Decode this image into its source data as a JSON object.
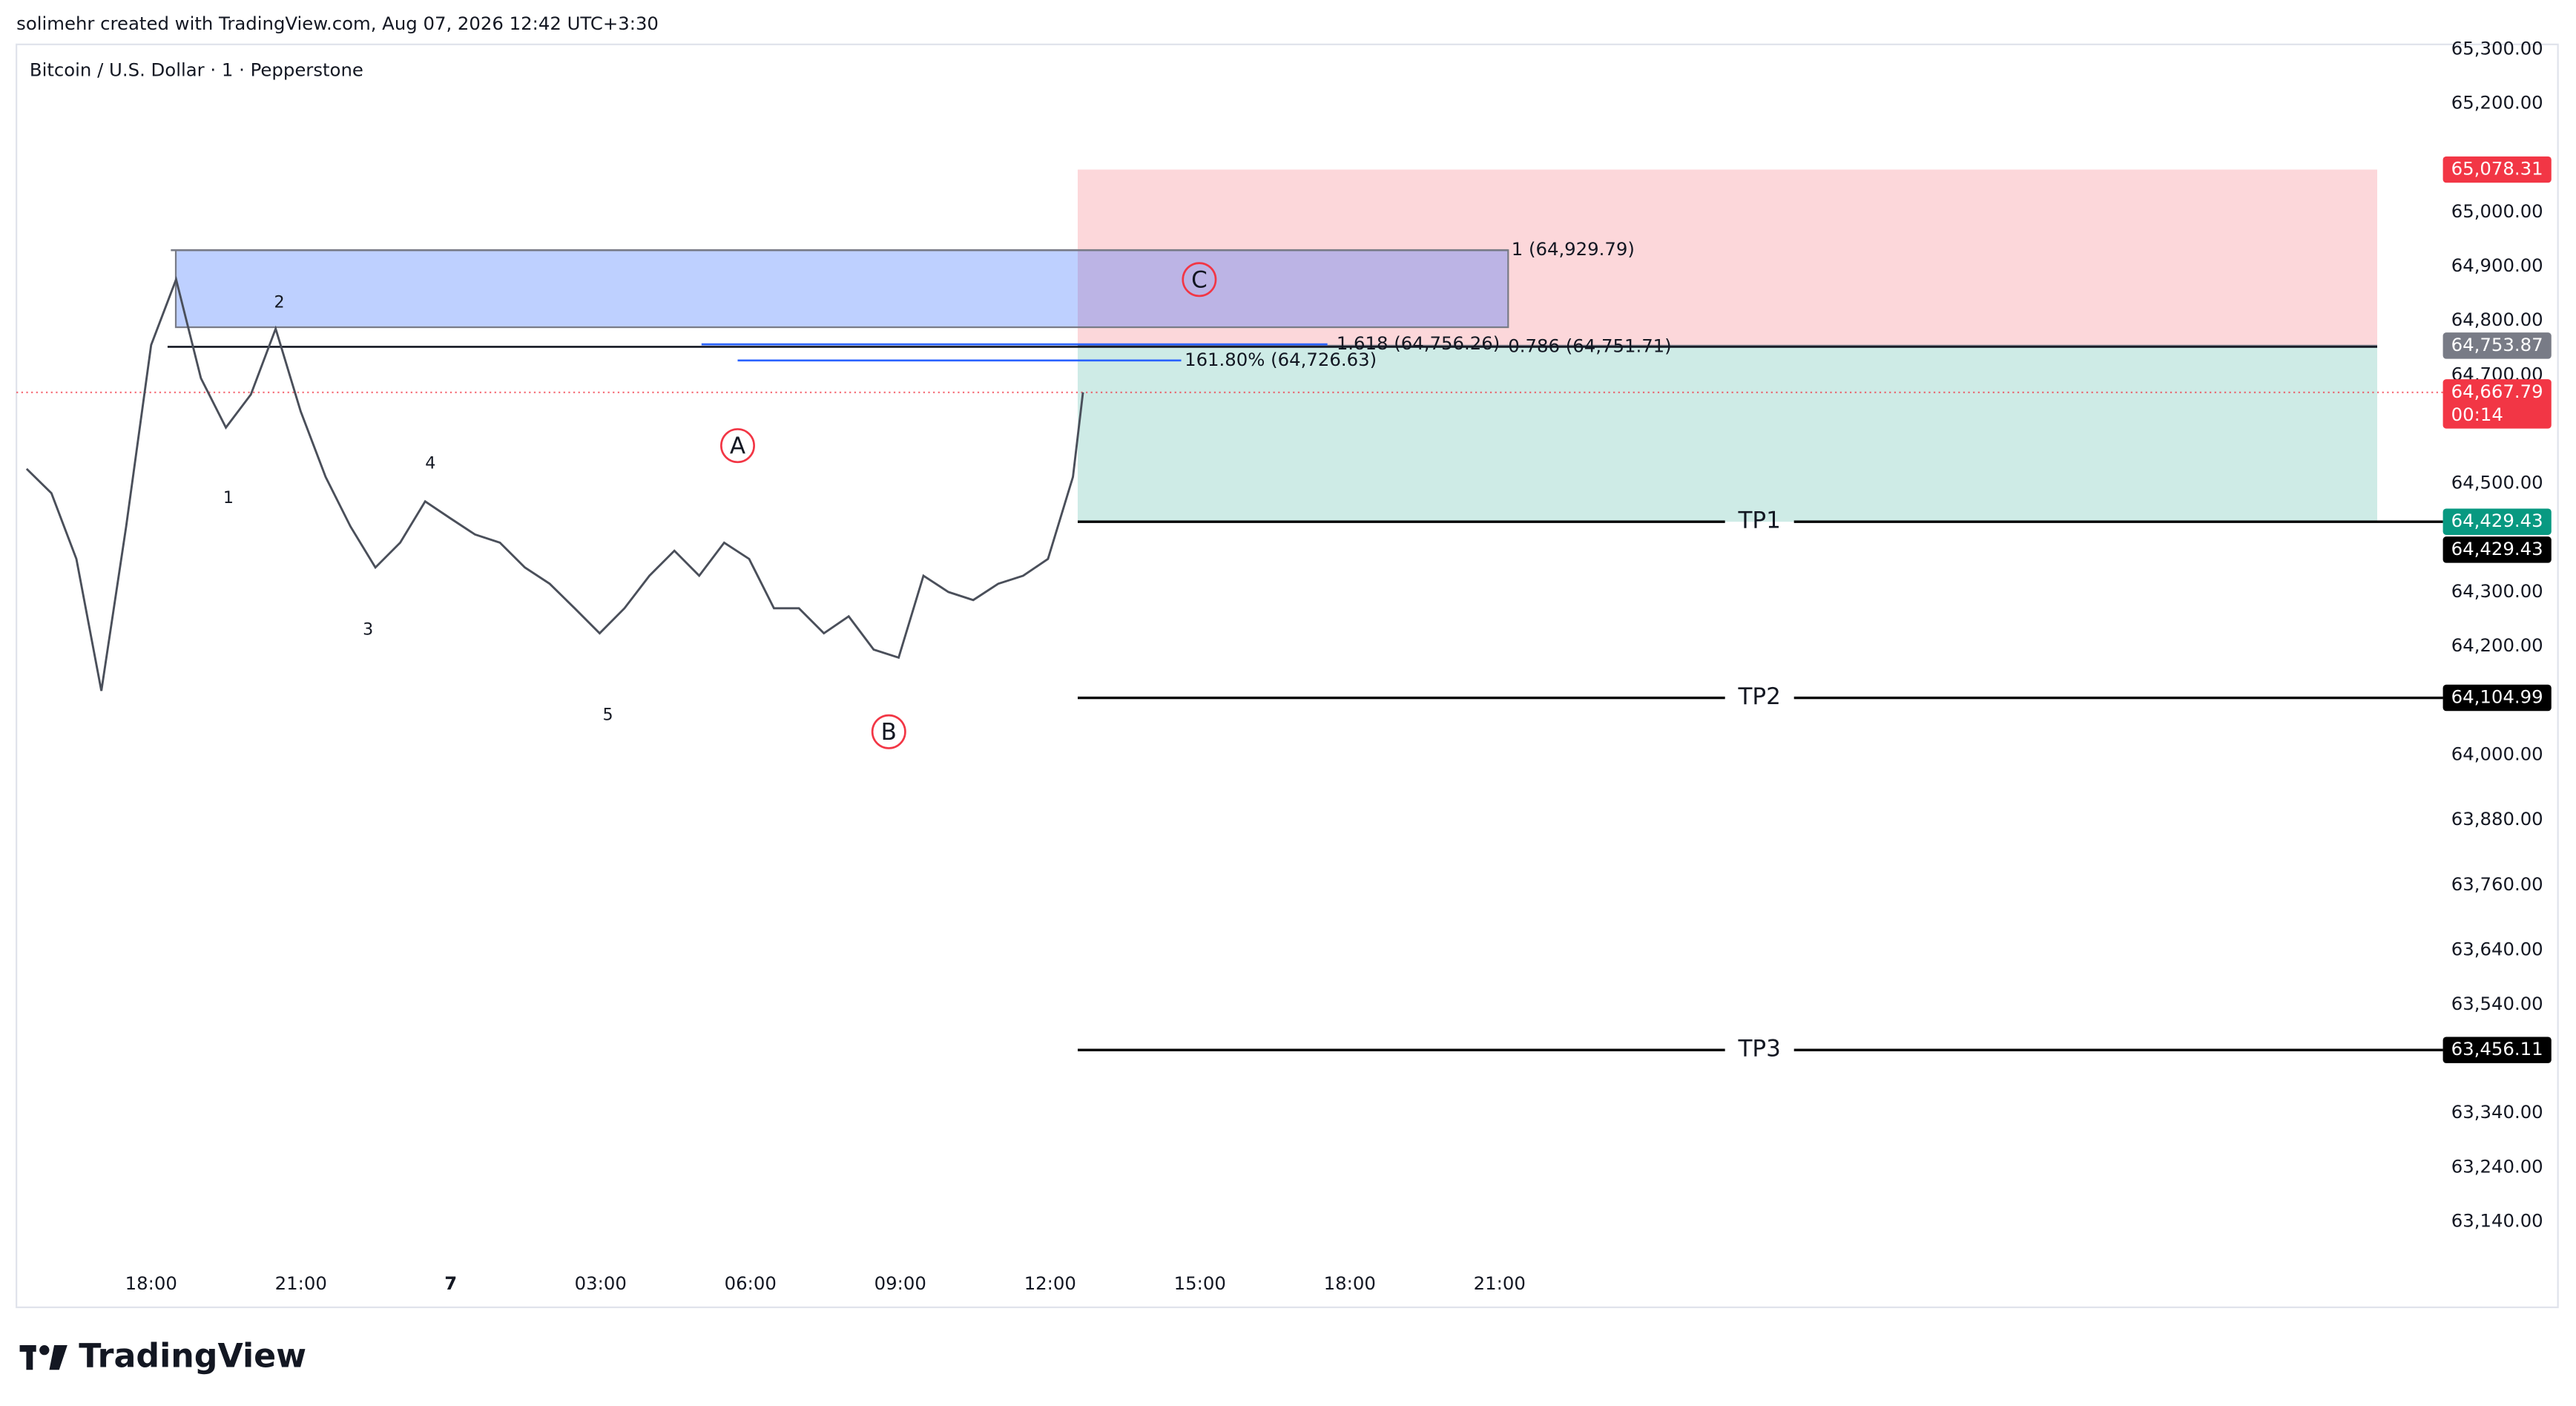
{
  "header": "solimehr created with TradingView.com, Aug 07, 2026 12:42 UTC+3:30",
  "brand": "TradingView",
  "chart_data": {
    "type": "line",
    "title": "Bitcoin / U.S. Dollar · 1 · Pepperstone",
    "x": [
      "15:30",
      "16:00",
      "16:30",
      "17:00",
      "17:30",
      "18:00",
      "18:30",
      "19:00",
      "19:30",
      "20:00",
      "20:30",
      "21:00",
      "21:30",
      "22:00",
      "22:30",
      "23:00",
      "23:30",
      "00:00",
      "00:30",
      "01:00",
      "01:30",
      "02:00",
      "02:30",
      "03:00",
      "03:30",
      "04:00",
      "04:30",
      "05:00",
      "05:30",
      "06:00",
      "06:30",
      "07:00",
      "07:30",
      "08:00",
      "08:30",
      "09:00",
      "09:30",
      "10:00",
      "10:30",
      "11:00",
      "11:30",
      "12:00",
      "12:30",
      "12:42"
    ],
    "series": [
      {
        "color": "#4a4f5a",
        "values": [
          64527,
          64482,
          64361,
          64118,
          64421,
          64755,
          64876,
          64694,
          64603,
          64664,
          64785,
          64633,
          64512,
          64421,
          64345,
          64391,
          64467,
          64436,
          64406,
          64391,
          64345,
          64315,
          64270,
          64224,
          64270,
          64330,
          64376,
          64330,
          64391,
          64361,
          64270,
          64270,
          64224,
          64255,
          64194,
          64179,
          64330,
          64300,
          64285,
          64315,
          64330,
          64361,
          64512,
          64667.79
        ]
      }
    ],
    "xticks": [
      "18:00",
      "21:00",
      "7",
      "03:00",
      "06:00",
      "09:00",
      "12:00",
      "15:00",
      "18:00",
      "21:00"
    ],
    "ylim": [
      62982,
      65315
    ],
    "yticks": [
      {
        "value": 65300,
        "label": "65,300.00"
      },
      {
        "value": 65200,
        "label": "65,200.00"
      },
      {
        "value": 65000,
        "label": "65,000.00"
      },
      {
        "value": 64900,
        "label": "64,900.00"
      },
      {
        "value": 64800,
        "label": "64,800.00"
      },
      {
        "value": 64700,
        "label": "64,700.00"
      },
      {
        "value": 64500,
        "label": "64,500.00"
      },
      {
        "value": 64300,
        "label": "64,300.00"
      },
      {
        "value": 64200,
        "label": "64,200.00"
      },
      {
        "value": 64000,
        "label": "64,000.00"
      },
      {
        "value": 63880,
        "label": "63,880.00"
      },
      {
        "value": 63760,
        "label": "63,760.00"
      },
      {
        "value": 63640,
        "label": "63,640.00"
      },
      {
        "value": 63540,
        "label": "63,540.00"
      },
      {
        "value": 63340,
        "label": "63,340.00"
      },
      {
        "value": 63240,
        "label": "63,240.00"
      },
      {
        "value": 63140,
        "label": "63,140.00"
      }
    ],
    "position": {
      "stop": {
        "value": 65078.31,
        "label": "65,078.31",
        "color": "#f23645"
      },
      "entry": {
        "value": 64753.87,
        "label": "64,753.87",
        "color": "#787b86"
      },
      "target": {
        "value": 64429.43,
        "label": "64,429.43",
        "color": "#089981"
      }
    },
    "current": {
      "value": 64667.79,
      "label": "64,667.79",
      "countdown": "00:14",
      "color": "#f23645"
    },
    "targets": [
      {
        "name": "TP1",
        "value": 64429.43,
        "label": "64,429.43"
      },
      {
        "name": "TP2",
        "value": 64104.99,
        "label": "64,104.99"
      },
      {
        "name": "TP3",
        "value": 63456.11,
        "label": "63,456.11"
      }
    ],
    "fib": [
      {
        "text": "1 (64,929.79)",
        "value": 64929.79,
        "color": "#8d7a7a"
      },
      {
        "text": "0.786 (64,751.71)",
        "value": 64751.71,
        "color": "#131722"
      },
      {
        "text": "1.618 (64,756.26)",
        "value": 64756.26,
        "color": "#2962ff"
      },
      {
        "text": "161.80% (64,726.63)",
        "value": 64726.63,
        "color": "#2962ff"
      }
    ],
    "waves": [
      "1",
      "2",
      "3",
      "4",
      "5",
      "A",
      "B",
      "C"
    ]
  }
}
